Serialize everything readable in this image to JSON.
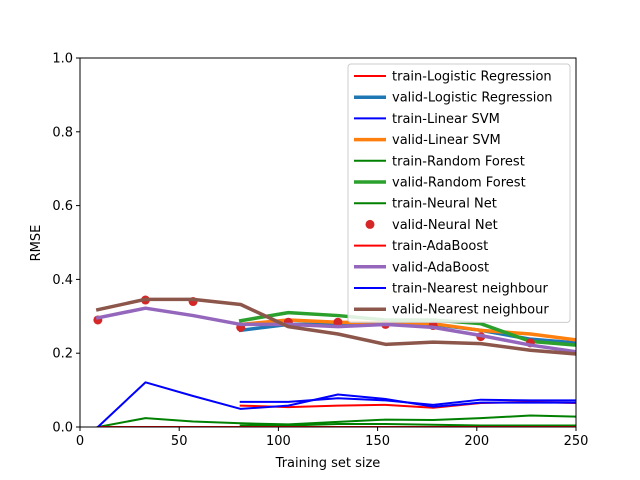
{
  "chart_data": {
    "type": "line",
    "title": "",
    "xlabel": "Training set size",
    "ylabel": "RMSE",
    "xlim": [
      0,
      250
    ],
    "ylim": [
      0,
      1.0
    ],
    "grid": false,
    "legend_position": "top-right",
    "x_ticks": [
      {
        "value": 0,
        "label": "0"
      },
      {
        "value": 50,
        "label": "50"
      },
      {
        "value": 100,
        "label": "100"
      },
      {
        "value": 150,
        "label": "150"
      },
      {
        "value": 200,
        "label": "200"
      },
      {
        "value": 250,
        "label": "250"
      }
    ],
    "y_ticks": [
      {
        "value": 0,
        "label": "0.0"
      },
      {
        "value": 0.2,
        "label": "0.2"
      },
      {
        "value": 0.4,
        "label": "0.4"
      },
      {
        "value": 0.6,
        "label": "0.6"
      },
      {
        "value": 0.8,
        "label": "0.8"
      },
      {
        "value": 1.0,
        "label": "1.0"
      }
    ],
    "series": [
      {
        "name": "train-Logistic Regression",
        "style": "line",
        "color": "#ff0000",
        "width": 2,
        "x": [
          81,
          105,
          130,
          154,
          178,
          202,
          227,
          250
        ],
        "y": [
          0.058,
          0.054,
          0.058,
          0.06,
          0.052,
          0.065,
          0.068,
          0.065
        ]
      },
      {
        "name": "valid-Logistic Regression",
        "style": "line",
        "color": "#1f77b4",
        "width": 3.5,
        "x": [
          81,
          105,
          130,
          154,
          178,
          202,
          227,
          250
        ],
        "y": [
          0.262,
          0.278,
          0.278,
          0.282,
          0.278,
          0.262,
          0.238,
          0.228
        ]
      },
      {
        "name": "train-Linear SVM",
        "style": "line",
        "color": "#0000ff",
        "width": 2,
        "x": [
          81,
          105,
          130,
          154,
          178,
          202,
          227,
          250
        ],
        "y": [
          0.068,
          0.068,
          0.078,
          0.072,
          0.06,
          0.074,
          0.072,
          0.072
        ]
      },
      {
        "name": "valid-Linear SVM",
        "style": "line",
        "color": "#ff7f0e",
        "width": 3.5,
        "x": [
          81,
          105,
          130,
          154,
          178,
          202,
          227,
          250
        ],
        "y": [
          0.278,
          0.29,
          0.284,
          0.282,
          0.28,
          0.262,
          0.252,
          0.236
        ]
      },
      {
        "name": "train-Random Forest",
        "style": "line",
        "color": "#008000",
        "width": 2,
        "x": [
          81,
          105,
          130,
          154,
          178,
          202,
          227,
          250
        ],
        "y": [
          0.004,
          0.004,
          0.008,
          0.008,
          0.006,
          0.004,
          0.004,
          0.004
        ]
      },
      {
        "name": "valid-Random Forest",
        "style": "line",
        "color": "#2ca02c",
        "width": 3.5,
        "x": [
          81,
          105,
          130,
          154,
          178,
          202,
          227,
          250
        ],
        "y": [
          0.288,
          0.31,
          0.302,
          0.29,
          0.29,
          0.28,
          0.232,
          0.222
        ]
      },
      {
        "name": "train-Neural Net",
        "style": "line",
        "color": "#008000",
        "width": 2,
        "x": [
          9,
          33,
          57,
          81,
          105,
          130,
          154,
          178,
          202,
          227,
          250
        ],
        "y": [
          0.0,
          0.024,
          0.015,
          0.01,
          0.007,
          0.014,
          0.02,
          0.019,
          0.024,
          0.031,
          0.028
        ]
      },
      {
        "name": "valid-Neural Net",
        "style": "marker",
        "color": "#d62728",
        "width": 0,
        "x": [
          9,
          33,
          57,
          81,
          105,
          130,
          154,
          178,
          202,
          227
        ],
        "y": [
          0.29,
          0.344,
          0.34,
          0.27,
          0.284,
          0.284,
          0.278,
          0.275,
          0.245,
          0.228
        ]
      },
      {
        "name": "train-AdaBoost",
        "style": "line",
        "color": "#ff0000",
        "width": 2,
        "x": [
          9,
          33,
          57,
          81,
          105,
          130,
          154,
          178,
          202,
          227,
          250
        ],
        "y": [
          0.0,
          0.0,
          0.0,
          0.0,
          0.0,
          0.0,
          0.0,
          0.0,
          0.0,
          0.0,
          0.0
        ]
      },
      {
        "name": "valid-AdaBoost",
        "style": "line",
        "color": "#9467bd",
        "width": 3.5,
        "x": [
          9,
          33,
          57,
          81,
          105,
          130,
          154,
          178,
          202,
          227,
          250
        ],
        "y": [
          0.296,
          0.322,
          0.302,
          0.278,
          0.278,
          0.272,
          0.278,
          0.27,
          0.248,
          0.222,
          0.204
        ]
      },
      {
        "name": "train-Nearest neighbour",
        "style": "line",
        "color": "#0000ff",
        "width": 2,
        "x": [
          9,
          33,
          57,
          81,
          105,
          130,
          154,
          178,
          202,
          227,
          250
        ],
        "y": [
          0.0,
          0.121,
          0.084,
          0.049,
          0.058,
          0.088,
          0.076,
          0.055,
          0.066,
          0.066,
          0.066
        ]
      },
      {
        "name": "valid-Nearest neighbour",
        "style": "line",
        "color": "#8c564b",
        "width": 3.5,
        "x": [
          9,
          33,
          57,
          81,
          105,
          130,
          154,
          178,
          202,
          227,
          250
        ],
        "y": [
          0.318,
          0.346,
          0.346,
          0.332,
          0.272,
          0.252,
          0.224,
          0.23,
          0.226,
          0.208,
          0.198
        ]
      }
    ]
  }
}
